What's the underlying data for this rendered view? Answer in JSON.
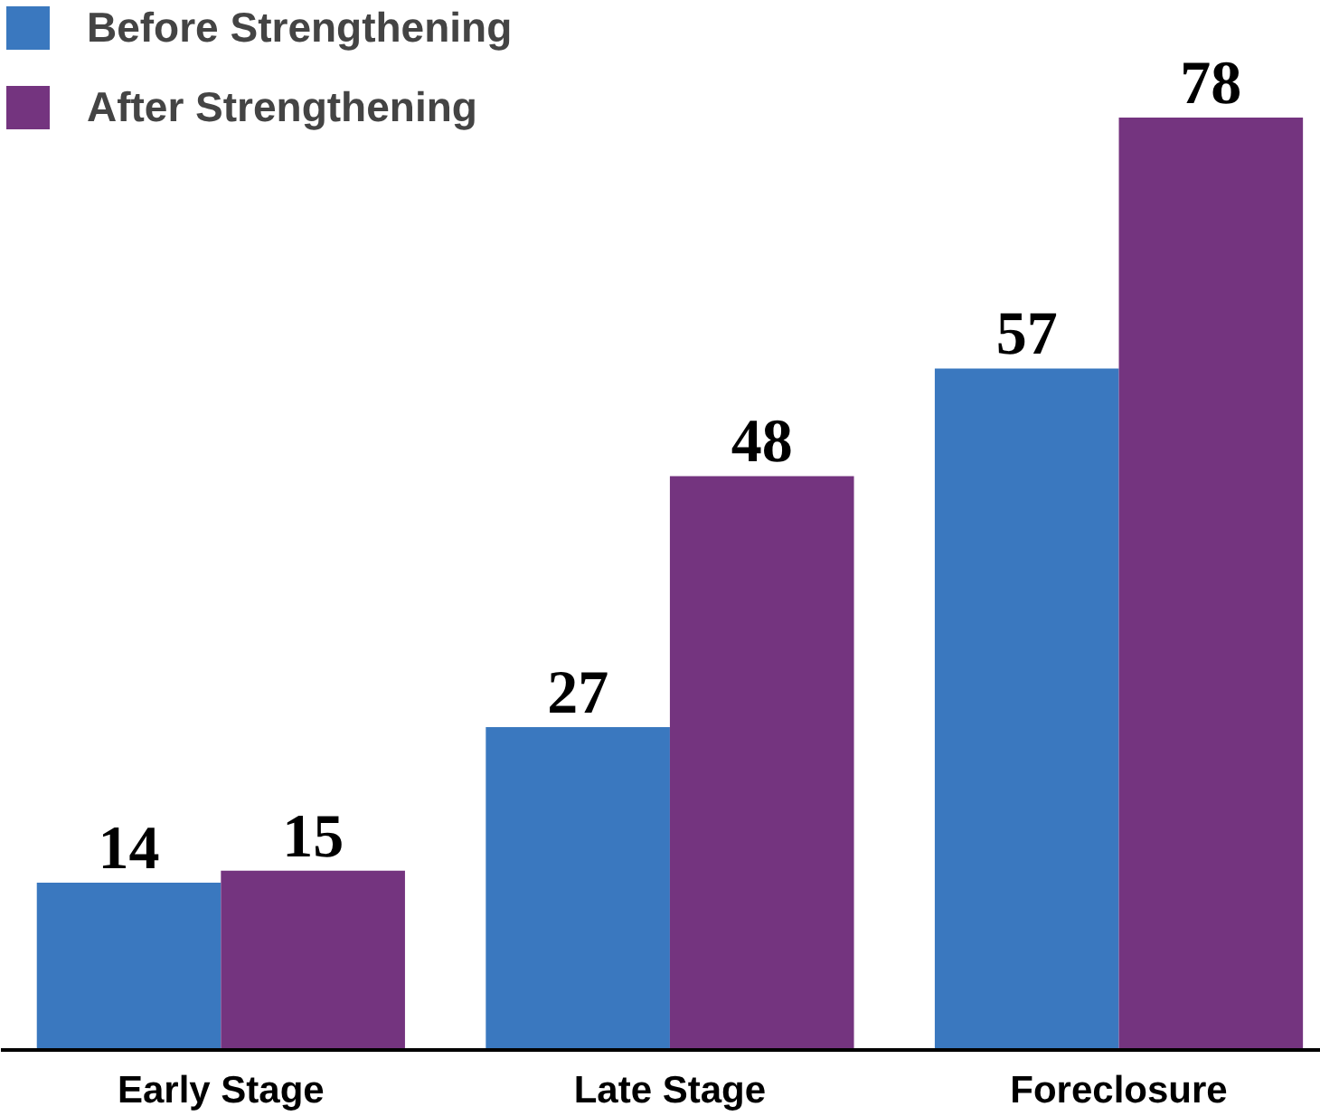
{
  "chart_data": {
    "type": "bar",
    "categories": [
      "Early Stage",
      "Late Stage",
      "Foreclosure"
    ],
    "series": [
      {
        "name": "Before Strengthening",
        "color": "#3a78bf",
        "values": [
          14,
          27,
          57
        ]
      },
      {
        "name": "After Strengthening",
        "color": "#74347f",
        "values": [
          15,
          48,
          78
        ]
      }
    ],
    "data_labels": true,
    "legend": "top left",
    "grid": false
  }
}
